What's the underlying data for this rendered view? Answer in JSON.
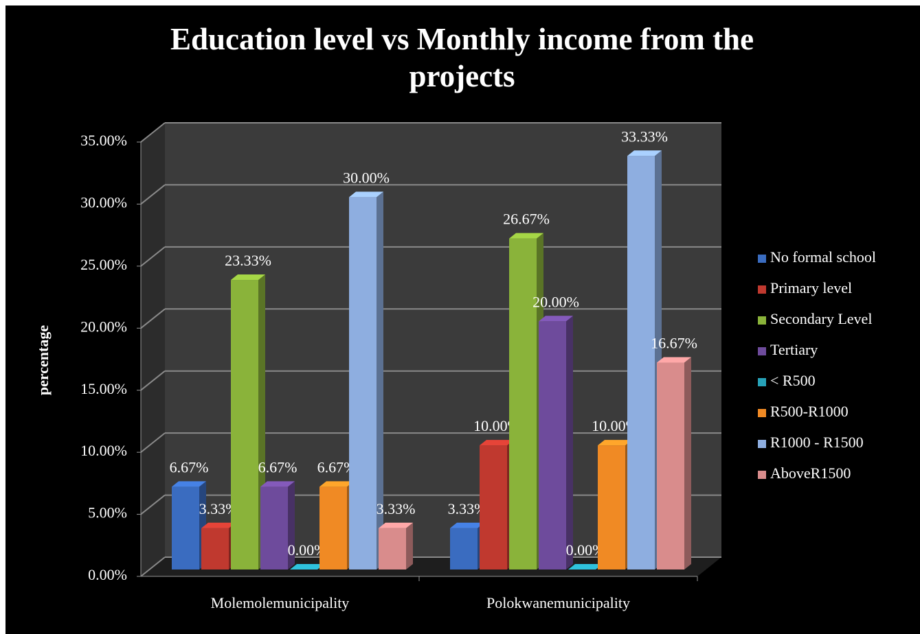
{
  "chart_data": {
    "type": "bar3d",
    "title": "Education level vs Monthly income from the projects",
    "y_label": "percentage",
    "categories": [
      "Molemolemunicipality",
      "Polokwanemunicipality"
    ],
    "ylim": [
      0,
      35
    ],
    "yticks": [
      {
        "value": 0,
        "label": "0.00%"
      },
      {
        "value": 5,
        "label": "5.00%"
      },
      {
        "value": 10,
        "label": "10.00%"
      },
      {
        "value": 15,
        "label": "15.00%"
      },
      {
        "value": 20,
        "label": "20.00%"
      },
      {
        "value": 25,
        "label": "25.00%"
      },
      {
        "value": 30,
        "label": "30.00%"
      },
      {
        "value": 35,
        "label": "35.00%"
      }
    ],
    "grid": true,
    "legend": "right",
    "series": [
      {
        "name": "No formal school",
        "color": "#3a6cc0",
        "values": [
          6.67,
          3.33
        ],
        "value_labels": [
          "6.67%",
          "3.33%"
        ]
      },
      {
        "name": "Primary level",
        "color": "#c0392f",
        "values": [
          3.33,
          10.0
        ],
        "value_labels": [
          "3.33%",
          "10.00%"
        ]
      },
      {
        "name": "Secondary Level",
        "color": "#8ab33a",
        "values": [
          23.33,
          26.67
        ],
        "value_labels": [
          "23.33%",
          "26.67%"
        ]
      },
      {
        "name": "Tertiary",
        "color": "#6e4b9c",
        "values": [
          6.67,
          20.0
        ],
        "value_labels": [
          "6.67%",
          "20.00%"
        ]
      },
      {
        "name": "< R500",
        "color": "#27a2b8",
        "values": [
          0,
          0
        ],
        "value_labels": [
          "0.00%",
          "0.00%"
        ]
      },
      {
        "name": "R500-R1000",
        "color": "#f08a24",
        "values": [
          6.67,
          10.0
        ],
        "value_labels": [
          "6.67%",
          "10.00%"
        ]
      },
      {
        "name": "R1000 - R1500",
        "color": "#8eaee0",
        "values": [
          30.0,
          33.33
        ],
        "value_labels": [
          "30.00%",
          "33.33%"
        ]
      },
      {
        "name": "AboveR1500",
        "color": "#d98c8c",
        "values": [
          3.33,
          16.67
        ],
        "value_labels": [
          "3.33%",
          "16.67%"
        ]
      }
    ]
  }
}
